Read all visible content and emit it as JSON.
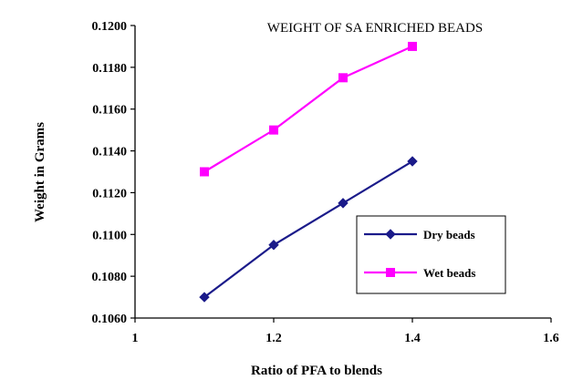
{
  "chart_data": {
    "type": "line",
    "title": "WEIGHT OF SA ENRICHED BEADS",
    "xlabel": "Ratio of  PFA to blends",
    "ylabel": "Weight in Grams",
    "xlim": [
      1,
      1.6
    ],
    "ylim": [
      0.106,
      0.12
    ],
    "xticks": [
      1,
      1.2,
      1.4,
      1.6
    ],
    "xtick_labels": [
      "1",
      "1.2",
      "1.4",
      "1.6"
    ],
    "yticks": [
      0.106,
      0.108,
      0.11,
      0.112,
      0.114,
      0.116,
      0.118,
      0.12
    ],
    "ytick_labels": [
      "0.1060",
      "0.1080",
      "0.1100",
      "0.1120",
      "0.1140",
      "0.1160",
      "0.1180",
      "0.1200"
    ],
    "grid": false,
    "legend_position": "bottom-right",
    "series": [
      {
        "name": "Dry beads",
        "color": "#1b1b8a",
        "marker": "diamond",
        "x": [
          1.1,
          1.2,
          1.3,
          1.4
        ],
        "y": [
          0.107,
          0.1095,
          0.1115,
          0.1135
        ]
      },
      {
        "name": "Wet beads",
        "color": "#ff00ff",
        "marker": "square",
        "x": [
          1.1,
          1.2,
          1.3,
          1.4
        ],
        "y": [
          0.113,
          0.115,
          0.1175,
          0.119
        ]
      }
    ]
  }
}
